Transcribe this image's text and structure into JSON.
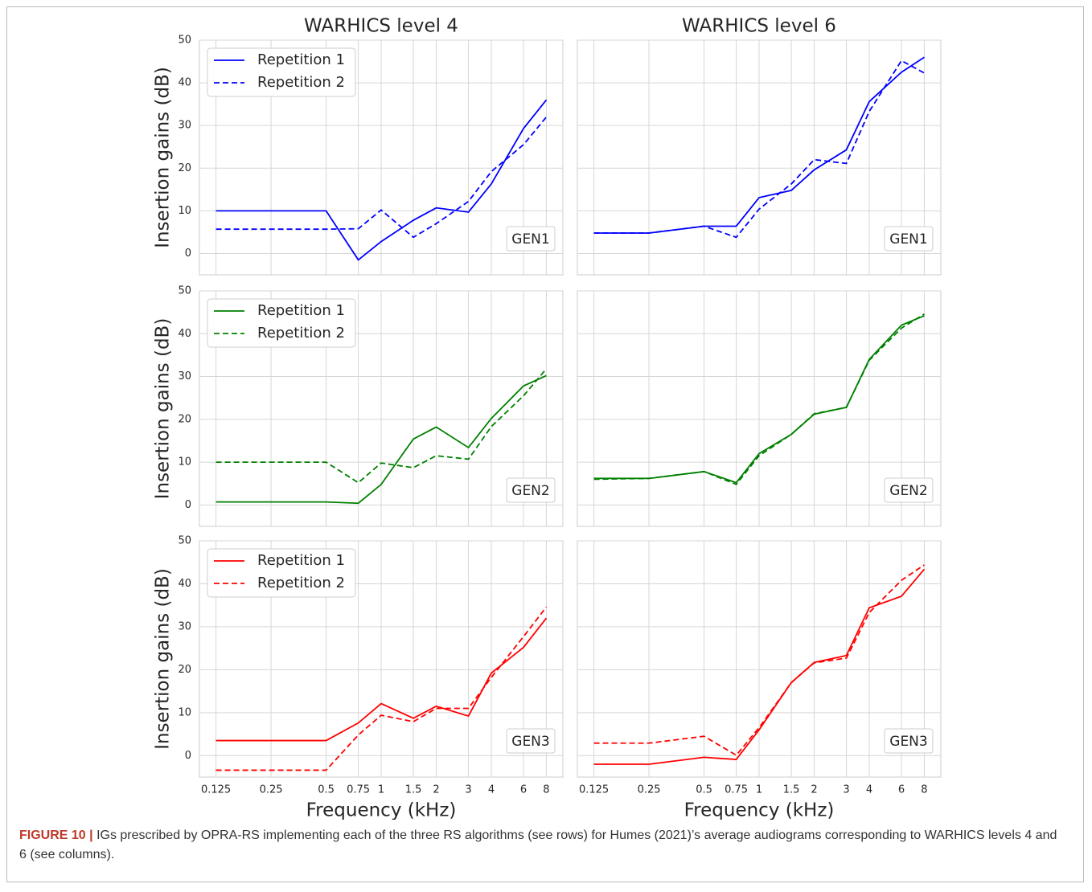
{
  "chart_data": [
    {
      "type": "line",
      "title": "WARHICS level 4",
      "ylabel": "Insertion gains (dB)",
      "annotation": "GEN1",
      "xscale": "log",
      "xlim": [
        0.1015,
        9.85
      ],
      "ylim": [
        -5,
        50
      ],
      "xticks": [
        0.125,
        0.25,
        0.5,
        0.75,
        1,
        1.5,
        2,
        3,
        4,
        6,
        8
      ],
      "yticks": [
        0,
        10,
        20,
        30,
        40,
        50
      ],
      "grid": true,
      "legend": "upper left",
      "show_xtick_labels": false,
      "show_ytick_labels": true,
      "x": [
        0.125,
        0.25,
        0.5,
        0.75,
        1,
        1.5,
        2,
        3,
        4,
        6,
        8
      ],
      "series": [
        {
          "name": "Repetition 1",
          "color": "#0000ff",
          "linestyle": "solid",
          "values": [
            10,
            10,
            10,
            -1.5,
            2.8,
            7.8,
            10.7,
            9.7,
            16.3,
            29.3,
            36
          ]
        },
        {
          "name": "Repetition 2",
          "color": "#0000ff",
          "linestyle": "dashed",
          "values": [
            5.7,
            5.7,
            5.7,
            5.8,
            10.2,
            3.8,
            7.0,
            12.2,
            19.2,
            25.5,
            32
          ]
        }
      ]
    },
    {
      "type": "line",
      "title": "WARHICS level 6",
      "annotation": "GEN1",
      "xscale": "log",
      "xlim": [
        0.1015,
        9.85
      ],
      "ylim": [
        -5,
        50
      ],
      "xticks": [
        0.125,
        0.25,
        0.5,
        0.75,
        1,
        1.5,
        2,
        3,
        4,
        6,
        8
      ],
      "yticks": [
        0,
        10,
        20,
        30,
        40,
        50
      ],
      "grid": true,
      "show_xtick_labels": false,
      "show_ytick_labels": false,
      "x": [
        0.125,
        0.25,
        0.5,
        0.75,
        1,
        1.5,
        2,
        3,
        4,
        6,
        8
      ],
      "series": [
        {
          "color": "#0000ff",
          "linestyle": "solid",
          "values": [
            4.8,
            4.8,
            6.4,
            6.4,
            13.1,
            14.8,
            19.6,
            24.3,
            35.6,
            42.5,
            46
          ]
        },
        {
          "color": "#0000ff",
          "linestyle": "dashed",
          "values": [
            4.8,
            4.8,
            6.4,
            3.8,
            10.4,
            16.3,
            22.0,
            21.1,
            33.3,
            45.2,
            42.3
          ]
        }
      ]
    },
    {
      "type": "line",
      "ylabel": "Insertion gains (dB)",
      "annotation": "GEN2",
      "xscale": "log",
      "xlim": [
        0.1015,
        9.85
      ],
      "ylim": [
        -5,
        50
      ],
      "xticks": [
        0.125,
        0.25,
        0.5,
        0.75,
        1,
        1.5,
        2,
        3,
        4,
        6,
        8
      ],
      "yticks": [
        0,
        10,
        20,
        30,
        40,
        50
      ],
      "grid": true,
      "legend": "upper left",
      "show_xtick_labels": false,
      "show_ytick_labels": true,
      "x": [
        0.125,
        0.25,
        0.5,
        0.75,
        1,
        1.5,
        2,
        3,
        4,
        6,
        8
      ],
      "series": [
        {
          "name": "Repetition 1",
          "color": "#008000",
          "linestyle": "solid",
          "values": [
            0.7,
            0.7,
            0.7,
            0.4,
            4.8,
            15.4,
            18.2,
            13.4,
            20.2,
            27.8,
            30.2
          ]
        },
        {
          "name": "Repetition 2",
          "color": "#008000",
          "linestyle": "dashed",
          "values": [
            10,
            10,
            10,
            5.2,
            9.8,
            8.7,
            11.5,
            10.7,
            18.3,
            25.5,
            31.8
          ]
        }
      ]
    },
    {
      "type": "line",
      "annotation": "GEN2",
      "xscale": "log",
      "xlim": [
        0.1015,
        9.85
      ],
      "ylim": [
        -5,
        50
      ],
      "xticks": [
        0.125,
        0.25,
        0.5,
        0.75,
        1,
        1.5,
        2,
        3,
        4,
        6,
        8
      ],
      "yticks": [
        0,
        10,
        20,
        30,
        40,
        50
      ],
      "grid": true,
      "show_xtick_labels": false,
      "show_ytick_labels": false,
      "x": [
        0.125,
        0.25,
        0.5,
        0.75,
        1,
        1.5,
        2,
        3,
        4,
        6,
        8
      ],
      "series": [
        {
          "color": "#008000",
          "linestyle": "solid",
          "values": [
            6.2,
            6.2,
            7.8,
            5.2,
            12,
            16.5,
            21.2,
            22.8,
            34,
            42,
            44.2
          ]
        },
        {
          "color": "#008000",
          "linestyle": "dashed",
          "values": [
            6.0,
            6.2,
            7.8,
            4.8,
            11.5,
            16.5,
            21.3,
            22.8,
            33.8,
            41.3,
            44.6
          ]
        }
      ]
    },
    {
      "type": "line",
      "ylabel": "Insertion gains (dB)",
      "xlabel": "Frequency (kHz)",
      "annotation": "GEN3",
      "xscale": "log",
      "xlim": [
        0.1015,
        9.85
      ],
      "ylim": [
        -5,
        50
      ],
      "xticks": [
        0.125,
        0.25,
        0.5,
        0.75,
        1,
        1.5,
        2,
        3,
        4,
        6,
        8
      ],
      "yticks": [
        0,
        10,
        20,
        30,
        40,
        50
      ],
      "grid": true,
      "legend": "upper left",
      "show_xtick_labels": true,
      "show_ytick_labels": true,
      "x": [
        0.125,
        0.25,
        0.5,
        0.75,
        1,
        1.5,
        2,
        3,
        4,
        6,
        8
      ],
      "series": [
        {
          "name": "Repetition 1",
          "color": "#ff0000",
          "linestyle": "solid",
          "values": [
            3.5,
            3.5,
            3.5,
            7.6,
            12.1,
            8.7,
            11.5,
            9.2,
            19.2,
            25.2,
            32
          ]
        },
        {
          "name": "Repetition 2",
          "color": "#ff0000",
          "linestyle": "dashed",
          "values": [
            -3.4,
            -3.4,
            -3.4,
            4.8,
            9.4,
            7.9,
            11,
            11,
            18.2,
            27.7,
            34.6
          ]
        }
      ]
    },
    {
      "type": "line",
      "xlabel": "Frequency (kHz)",
      "annotation": "GEN3",
      "xscale": "log",
      "xlim": [
        0.1015,
        9.85
      ],
      "ylim": [
        -5,
        50
      ],
      "xticks": [
        0.125,
        0.25,
        0.5,
        0.75,
        1,
        1.5,
        2,
        3,
        4,
        6,
        8
      ],
      "yticks": [
        0,
        10,
        20,
        30,
        40,
        50
      ],
      "grid": true,
      "show_xtick_labels": true,
      "show_ytick_labels": false,
      "x": [
        0.125,
        0.25,
        0.5,
        0.75,
        1,
        1.5,
        2,
        3,
        4,
        6,
        8
      ],
      "series": [
        {
          "color": "#ff0000",
          "linestyle": "solid",
          "values": [
            -2,
            -2,
            -0.4,
            -0.9,
            6,
            17,
            21.7,
            23.3,
            34.4,
            37.1,
            43.4
          ]
        },
        {
          "color": "#ff0000",
          "linestyle": "dashed",
          "values": [
            2.9,
            2.9,
            4.5,
            0.1,
            6.5,
            17,
            21.6,
            22.7,
            33.3,
            40.8,
            44.4
          ]
        }
      ]
    }
  ],
  "caption": {
    "label": "FIGURE 10 |",
    "text": "IGs prescribed by OPRA-RS implementing each of the three RS algorithms (see rows) for Humes (2021)’s average audiograms corresponding to WARHICS levels 4 and 6 (see columns)."
  }
}
